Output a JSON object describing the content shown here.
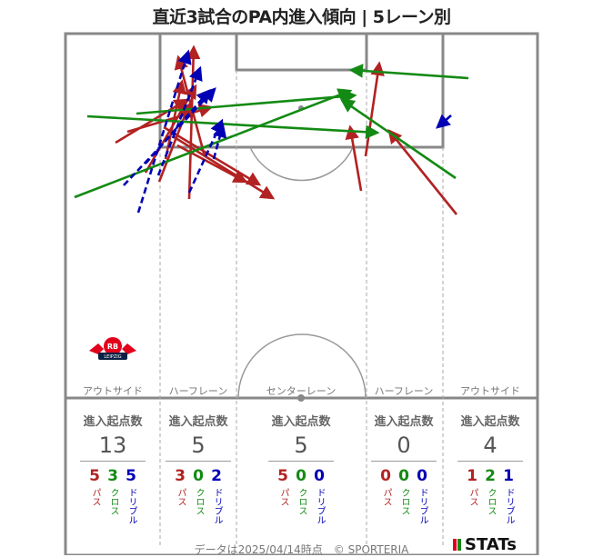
{
  "title": "直近3試合のPA内進入傾向 | 5レーン別",
  "lanes": [
    {
      "label": "アウトサイド",
      "stat_header": "進入起点数",
      "total": "13",
      "pass": "5",
      "cross": "3",
      "dribble": "5"
    },
    {
      "label": "ハーフレーン",
      "stat_header": "進入起点数",
      "total": "5",
      "pass": "3",
      "cross": "0",
      "dribble": "2"
    },
    {
      "label": "センターレーン",
      "stat_header": "進入起点数",
      "total": "5",
      "pass": "5",
      "cross": "0",
      "dribble": "0"
    },
    {
      "label": "ハーフレーン",
      "stat_header": "進入起点数",
      "total": "0",
      "pass": "0",
      "cross": "0",
      "dribble": "0"
    },
    {
      "label": "アウトサイド",
      "stat_header": "進入起点数",
      "total": "4",
      "pass": "1",
      "cross": "2",
      "dribble": "1"
    }
  ],
  "type_labels": {
    "pass": "パス",
    "cross": "クロス",
    "dribble": "ドリブル"
  },
  "colors": {
    "pass": "#b22222",
    "cross": "#138a13",
    "dribble": "#0000b4",
    "pitch_line": "#888888"
  },
  "club_logo": {
    "text": "RB",
    "subtext": "LEIPZIG"
  },
  "footer": "データは2025/04/14時点　© SPORTERIA",
  "brand": "STATs",
  "chart_data": {
    "type": "pitch-arrows",
    "categories": [
      "アウトサイド",
      "ハーフレーン",
      "センターレーン",
      "ハーフレーン",
      "アウトサイド"
    ],
    "series": [
      {
        "name": "パス",
        "values": [
          5,
          3,
          5,
          0,
          1
        ]
      },
      {
        "name": "クロス",
        "values": [
          3,
          0,
          0,
          0,
          2
        ]
      },
      {
        "name": "ドリブル",
        "values": [
          5,
          2,
          0,
          0,
          1
        ]
      }
    ]
  }
}
